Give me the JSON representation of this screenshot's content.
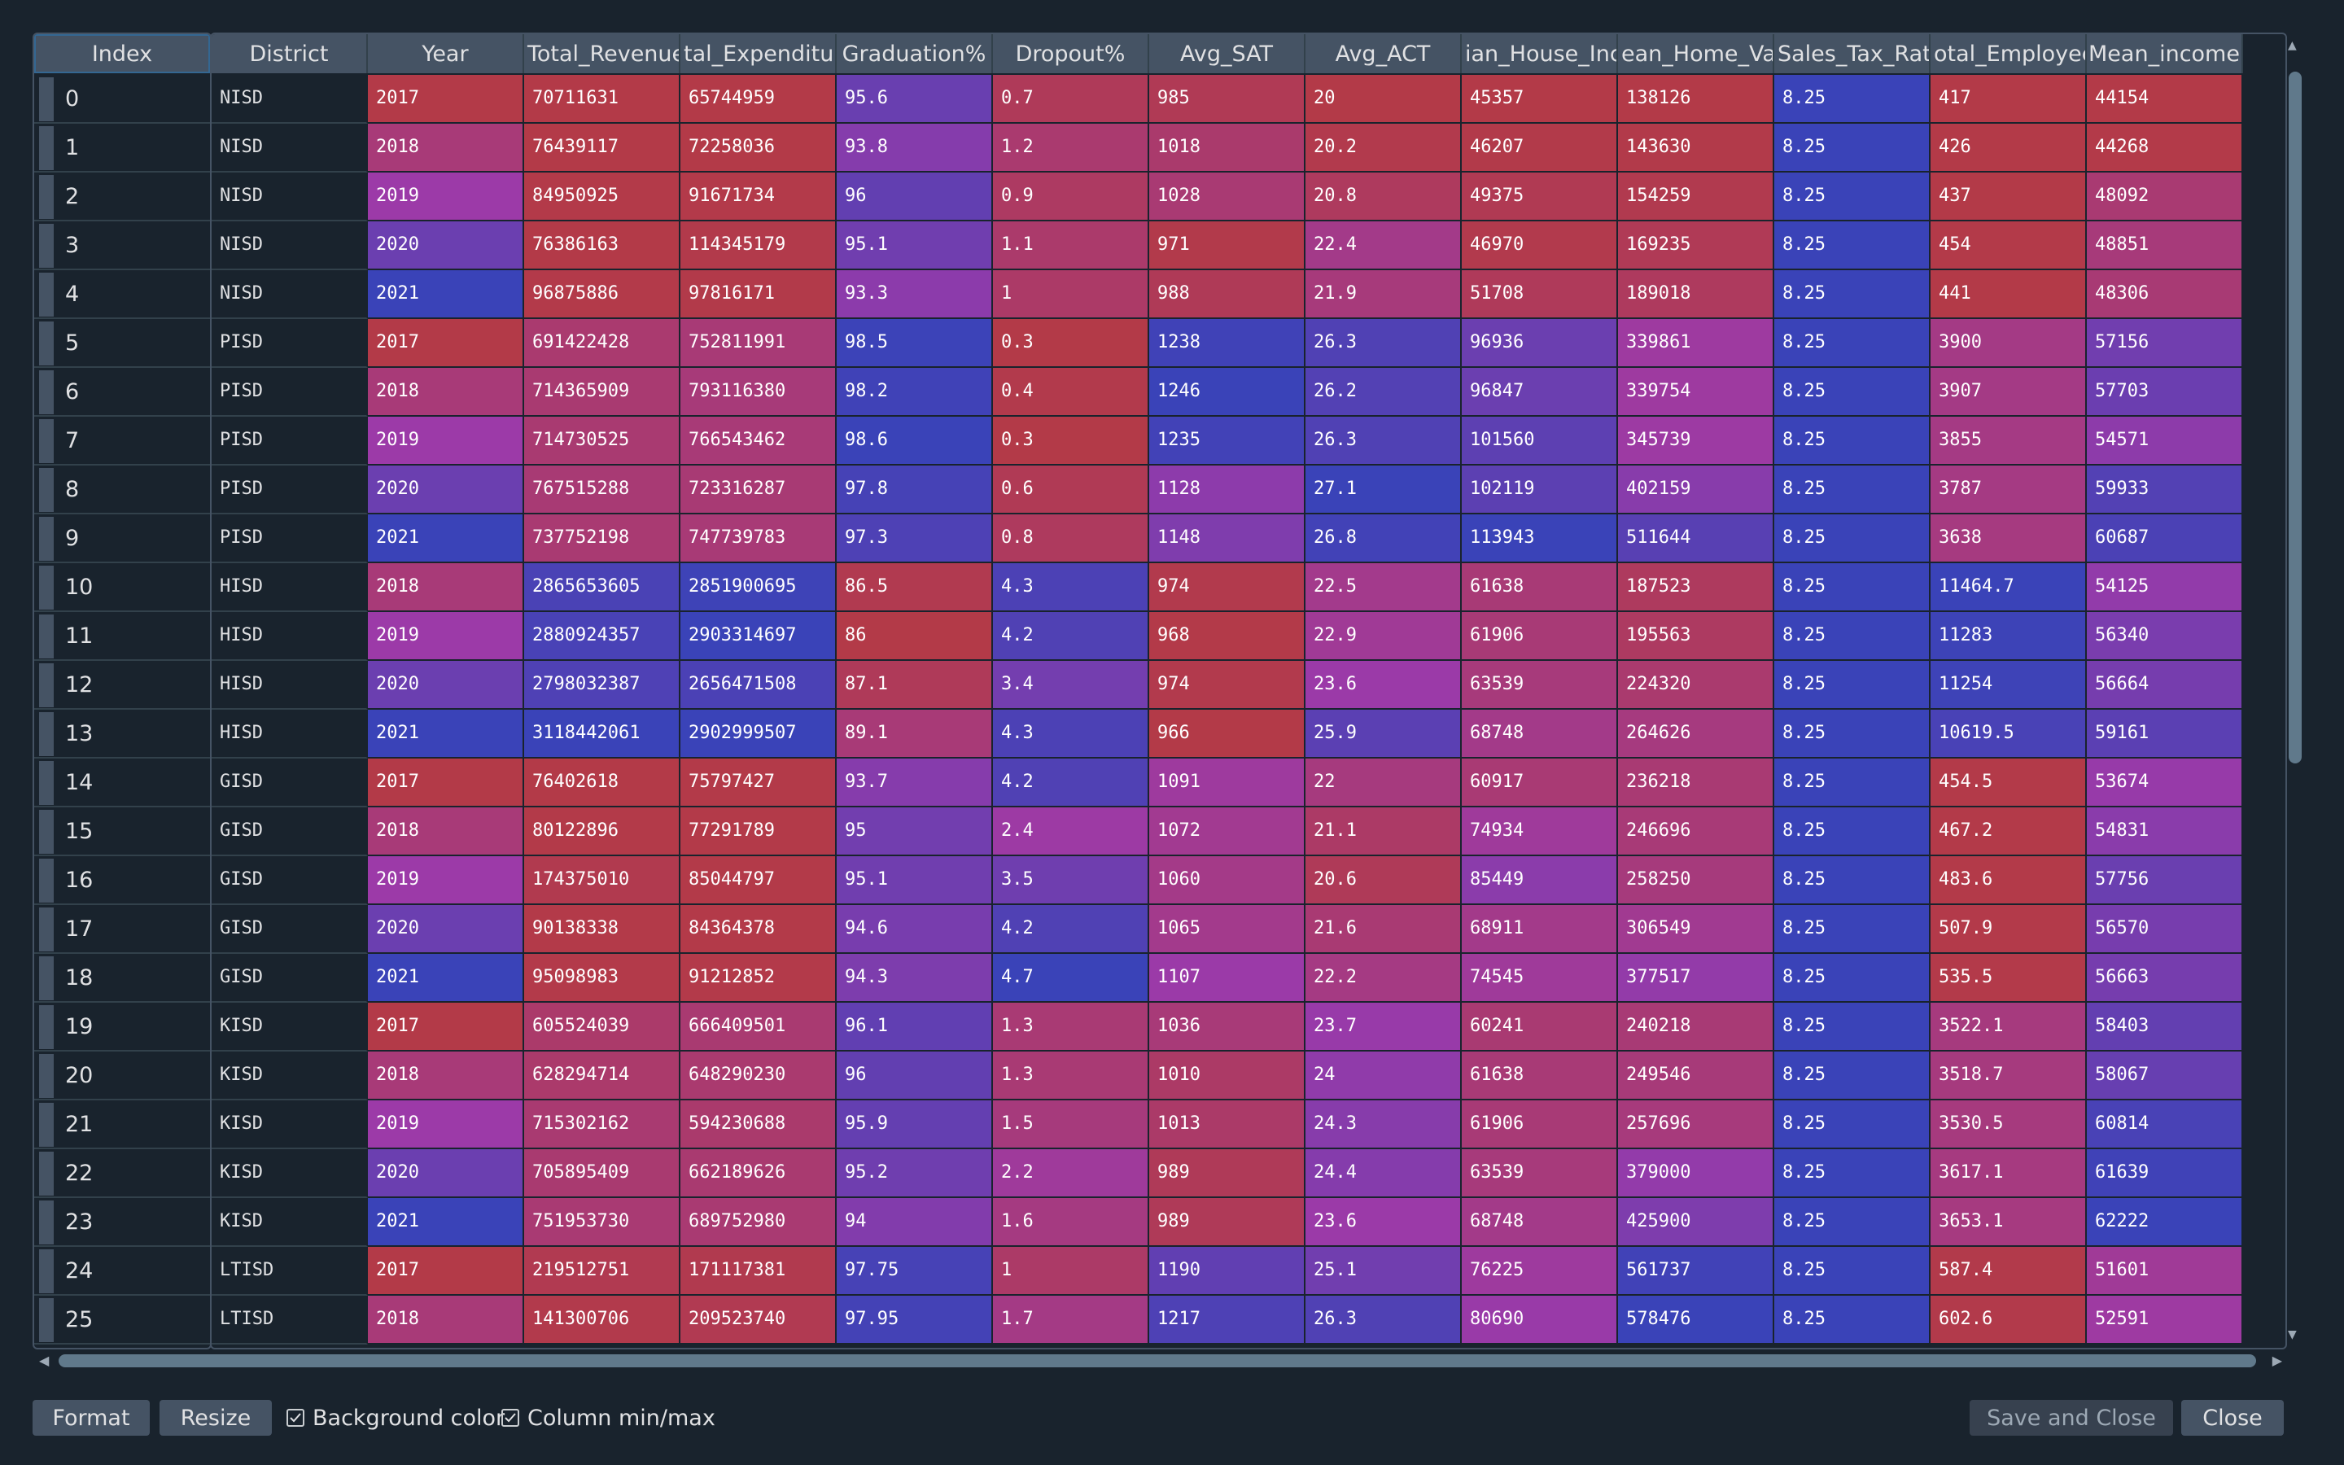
{
  "index_header": "Index",
  "columns": [
    {
      "label": "District"
    },
    {
      "label": "Year"
    },
    {
      "label": "Total_Revenue"
    },
    {
      "label": "tal_Expenditur"
    },
    {
      "label": "Graduation%"
    },
    {
      "label": "Dropout%"
    },
    {
      "label": "Avg_SAT"
    },
    {
      "label": "Avg_ACT"
    },
    {
      "label": "ian_House_Inc"
    },
    {
      "label": "ean_Home_Val"
    },
    {
      "label": "Sales_Tax_Rate"
    },
    {
      "label": "otal_Employee"
    },
    {
      "label": "Mean_income"
    }
  ],
  "rows": [
    {
      "index": "0",
      "cells": [
        "NISD",
        "2017",
        "70711631",
        "65744959",
        "95.6",
        "0.7",
        "985",
        "20",
        "45357",
        "138126",
        "8.25",
        "417",
        "44154"
      ]
    },
    {
      "index": "1",
      "cells": [
        "NISD",
        "2018",
        "76439117",
        "72258036",
        "93.8",
        "1.2",
        "1018",
        "20.2",
        "46207",
        "143630",
        "8.25",
        "426",
        "44268"
      ]
    },
    {
      "index": "2",
      "cells": [
        "NISD",
        "2019",
        "84950925",
        "91671734",
        "96",
        "0.9",
        "1028",
        "20.8",
        "49375",
        "154259",
        "8.25",
        "437",
        "48092"
      ]
    },
    {
      "index": "3",
      "cells": [
        "NISD",
        "2020",
        "76386163",
        "114345179",
        "95.1",
        "1.1",
        "971",
        "22.4",
        "46970",
        "169235",
        "8.25",
        "454",
        "48851"
      ]
    },
    {
      "index": "4",
      "cells": [
        "NISD",
        "2021",
        "96875886",
        "97816171",
        "93.3",
        "1",
        "988",
        "21.9",
        "51708",
        "189018",
        "8.25",
        "441",
        "48306"
      ]
    },
    {
      "index": "5",
      "cells": [
        "PISD",
        "2017",
        "691422428",
        "752811991",
        "98.5",
        "0.3",
        "1238",
        "26.3",
        "96936",
        "339861",
        "8.25",
        "3900",
        "57156"
      ]
    },
    {
      "index": "6",
      "cells": [
        "PISD",
        "2018",
        "714365909",
        "793116380",
        "98.2",
        "0.4",
        "1246",
        "26.2",
        "96847",
        "339754",
        "8.25",
        "3907",
        "57703"
      ]
    },
    {
      "index": "7",
      "cells": [
        "PISD",
        "2019",
        "714730525",
        "766543462",
        "98.6",
        "0.3",
        "1235",
        "26.3",
        "101560",
        "345739",
        "8.25",
        "3855",
        "54571"
      ]
    },
    {
      "index": "8",
      "cells": [
        "PISD",
        "2020",
        "767515288",
        "723316287",
        "97.8",
        "0.6",
        "1128",
        "27.1",
        "102119",
        "402159",
        "8.25",
        "3787",
        "59933"
      ]
    },
    {
      "index": "9",
      "cells": [
        "PISD",
        "2021",
        "737752198",
        "747739783",
        "97.3",
        "0.8",
        "1148",
        "26.8",
        "113943",
        "511644",
        "8.25",
        "3638",
        "60687"
      ]
    },
    {
      "index": "10",
      "cells": [
        "HISD",
        "2018",
        "2865653605",
        "2851900695",
        "86.5",
        "4.3",
        "974",
        "22.5",
        "61638",
        "187523",
        "8.25",
        "11464.7",
        "54125"
      ]
    },
    {
      "index": "11",
      "cells": [
        "HISD",
        "2019",
        "2880924357",
        "2903314697",
        "86",
        "4.2",
        "968",
        "22.9",
        "61906",
        "195563",
        "8.25",
        "11283",
        "56340"
      ]
    },
    {
      "index": "12",
      "cells": [
        "HISD",
        "2020",
        "2798032387",
        "2656471508",
        "87.1",
        "3.4",
        "974",
        "23.6",
        "63539",
        "224320",
        "8.25",
        "11254",
        "56664"
      ]
    },
    {
      "index": "13",
      "cells": [
        "HISD",
        "2021",
        "3118442061",
        "2902999507",
        "89.1",
        "4.3",
        "966",
        "25.9",
        "68748",
        "264626",
        "8.25",
        "10619.5",
        "59161"
      ]
    },
    {
      "index": "14",
      "cells": [
        "GISD",
        "2017",
        "76402618",
        "75797427",
        "93.7",
        "4.2",
        "1091",
        "22",
        "60917",
        "236218",
        "8.25",
        "454.5",
        "53674"
      ]
    },
    {
      "index": "15",
      "cells": [
        "GISD",
        "2018",
        "80122896",
        "77291789",
        "95",
        "2.4",
        "1072",
        "21.1",
        "74934",
        "246696",
        "8.25",
        "467.2",
        "54831"
      ]
    },
    {
      "index": "16",
      "cells": [
        "GISD",
        "2019",
        "174375010",
        "85044797",
        "95.1",
        "3.5",
        "1060",
        "20.6",
        "85449",
        "258250",
        "8.25",
        "483.6",
        "57756"
      ]
    },
    {
      "index": "17",
      "cells": [
        "GISD",
        "2020",
        "90138338",
        "84364378",
        "94.6",
        "4.2",
        "1065",
        "21.6",
        "68911",
        "306549",
        "8.25",
        "507.9",
        "56570"
      ]
    },
    {
      "index": "18",
      "cells": [
        "GISD",
        "2021",
        "95098983",
        "91212852",
        "94.3",
        "4.7",
        "1107",
        "22.2",
        "74545",
        "377517",
        "8.25",
        "535.5",
        "56663"
      ]
    },
    {
      "index": "19",
      "cells": [
        "KISD",
        "2017",
        "605524039",
        "666409501",
        "96.1",
        "1.3",
        "1036",
        "23.7",
        "60241",
        "240218",
        "8.25",
        "3522.1",
        "58403"
      ]
    },
    {
      "index": "20",
      "cells": [
        "KISD",
        "2018",
        "628294714",
        "648290230",
        "96",
        "1.3",
        "1010",
        "24",
        "61638",
        "249546",
        "8.25",
        "3518.7",
        "58067"
      ]
    },
    {
      "index": "21",
      "cells": [
        "KISD",
        "2019",
        "715302162",
        "594230688",
        "95.9",
        "1.5",
        "1013",
        "24.3",
        "61906",
        "257696",
        "8.25",
        "3530.5",
        "60814"
      ]
    },
    {
      "index": "22",
      "cells": [
        "KISD",
        "2020",
        "705895409",
        "662189626",
        "95.2",
        "2.2",
        "989",
        "24.4",
        "63539",
        "379000",
        "8.25",
        "3617.1",
        "61639"
      ]
    },
    {
      "index": "23",
      "cells": [
        "KISD",
        "2021",
        "751953730",
        "689752980",
        "94",
        "1.6",
        "989",
        "23.6",
        "68748",
        "425900",
        "8.25",
        "3653.1",
        "62222"
      ]
    },
    {
      "index": "24",
      "cells": [
        "LTISD",
        "2017",
        "219512751",
        "171117381",
        "97.75",
        "1",
        "1190",
        "25.1",
        "76225",
        "561737",
        "8.25",
        "587.4",
        "51601"
      ]
    },
    {
      "index": "25",
      "cells": [
        "LTISD",
        "2018",
        "141300706",
        "209523740",
        "97.95",
        "1.7",
        "1217",
        "26.3",
        "80690",
        "578476",
        "8.25",
        "602.6",
        "52591"
      ]
    }
  ],
  "colormap": {
    "low": "#3a43b8",
    "mid": "#9c3aa8",
    "high": "#b33a48"
  },
  "colors": {
    "background": "#19232d",
    "header": "#455364",
    "scroll_handle": "#60798b"
  },
  "bottom": {
    "format_label": "Format",
    "resize_label": "Resize",
    "bg_color_label": "Background color",
    "bg_color_checked": true,
    "minmax_label": "Column min/max",
    "minmax_checked": true,
    "save_close_label": "Save and Close",
    "close_label": "Close"
  }
}
